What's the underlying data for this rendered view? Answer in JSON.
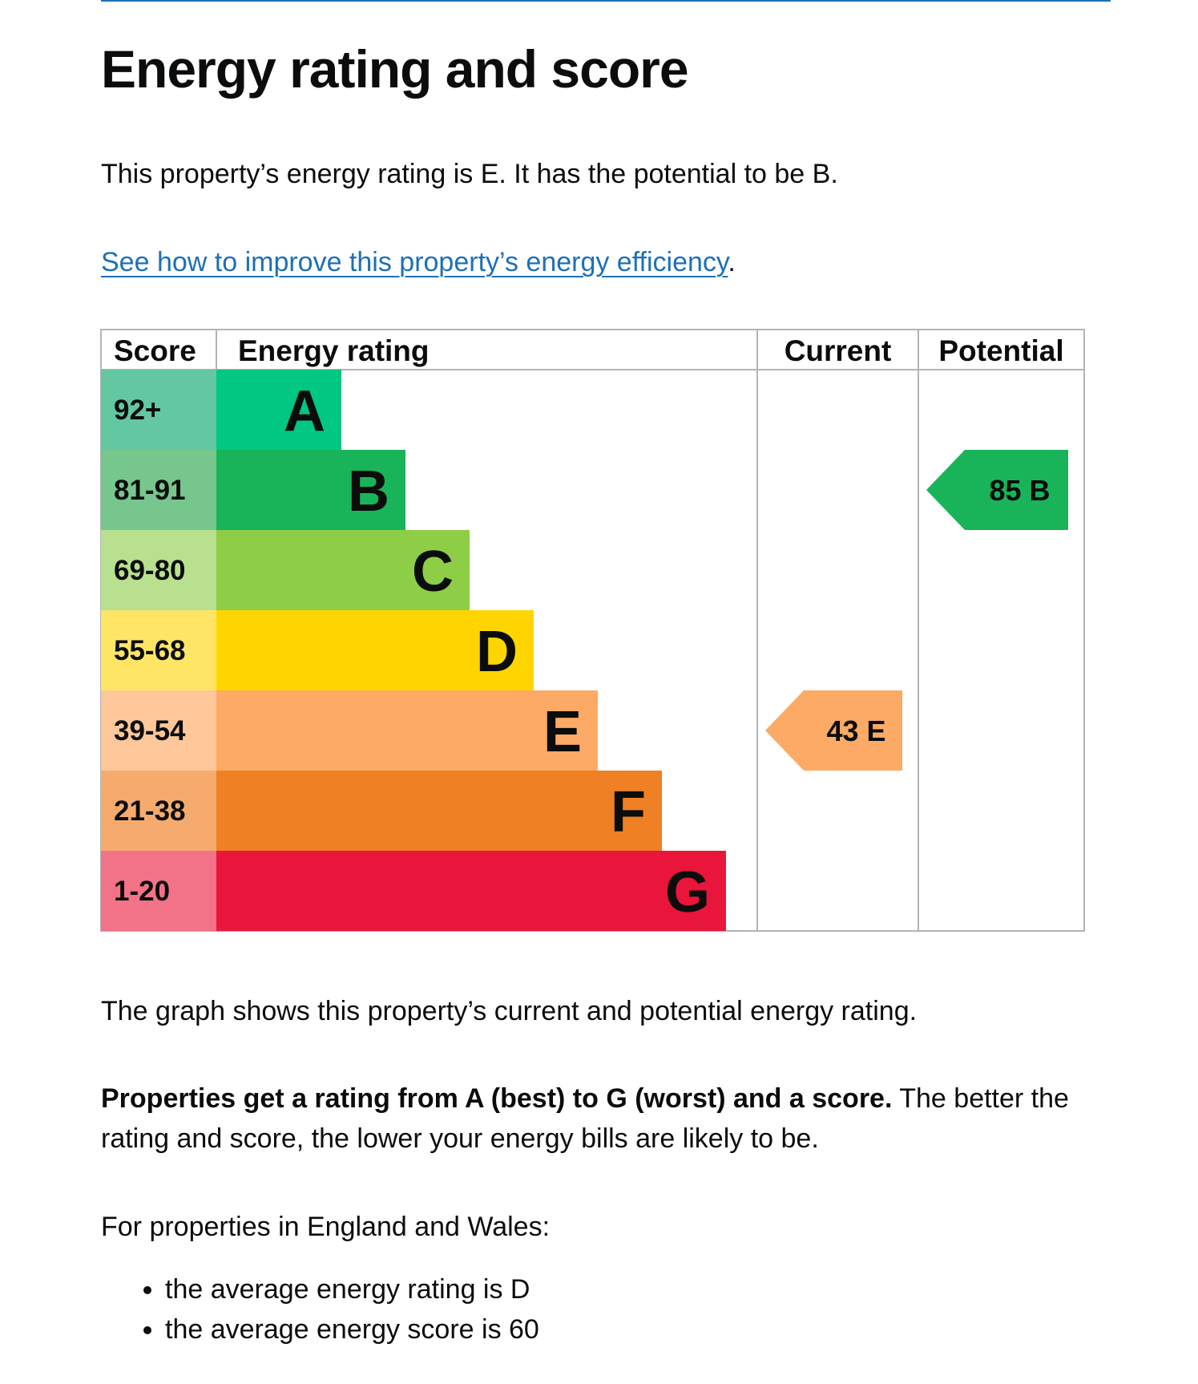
{
  "page": {
    "title": "Energy rating and score",
    "summary": "This property’s energy rating is E. It has the potential to be B.",
    "improve_link": "See how to improve this property’s energy efficiency",
    "improve_suffix": ".",
    "graph_description": "The graph shows this property’s current and potential energy rating.",
    "properties_bold": "Properties get a rating from A (best) to G (worst) and a score.",
    "properties_rest": " The better the rating and score, the lower your energy bills are likely to be.",
    "england_wales": "For properties in England and Wales:",
    "averages": [
      "the average energy rating is D",
      "the average energy score is 60"
    ]
  },
  "chart_data": {
    "type": "bar",
    "columns": [
      "Score",
      "Energy rating",
      "Current",
      "Potential"
    ],
    "bands": [
      {
        "letter": "A",
        "range": "92+",
        "band_color": "#00c781",
        "score_color": "#63c7a2"
      },
      {
        "letter": "B",
        "range": "81-91",
        "band_color": "#19b459",
        "score_color": "#76c68d"
      },
      {
        "letter": "C",
        "range": "69-80",
        "band_color": "#8dce46",
        "score_color": "#b8e08e"
      },
      {
        "letter": "D",
        "range": "55-68",
        "band_color": "#ffd500",
        "score_color": "#ffe566"
      },
      {
        "letter": "E",
        "range": "39-54",
        "band_color": "#fcaa65",
        "score_color": "#fdc79a"
      },
      {
        "letter": "F",
        "range": "21-38",
        "band_color": "#ef8023",
        "score_color": "#f5ab6e"
      },
      {
        "letter": "G",
        "range": "1-20",
        "band_color": "#e9153b",
        "score_color": "#f27288"
      }
    ],
    "current": {
      "score": 43,
      "rating": "E",
      "color": "#fcaa65"
    },
    "potential": {
      "score": 85,
      "rating": "B",
      "color": "#19b459"
    }
  }
}
